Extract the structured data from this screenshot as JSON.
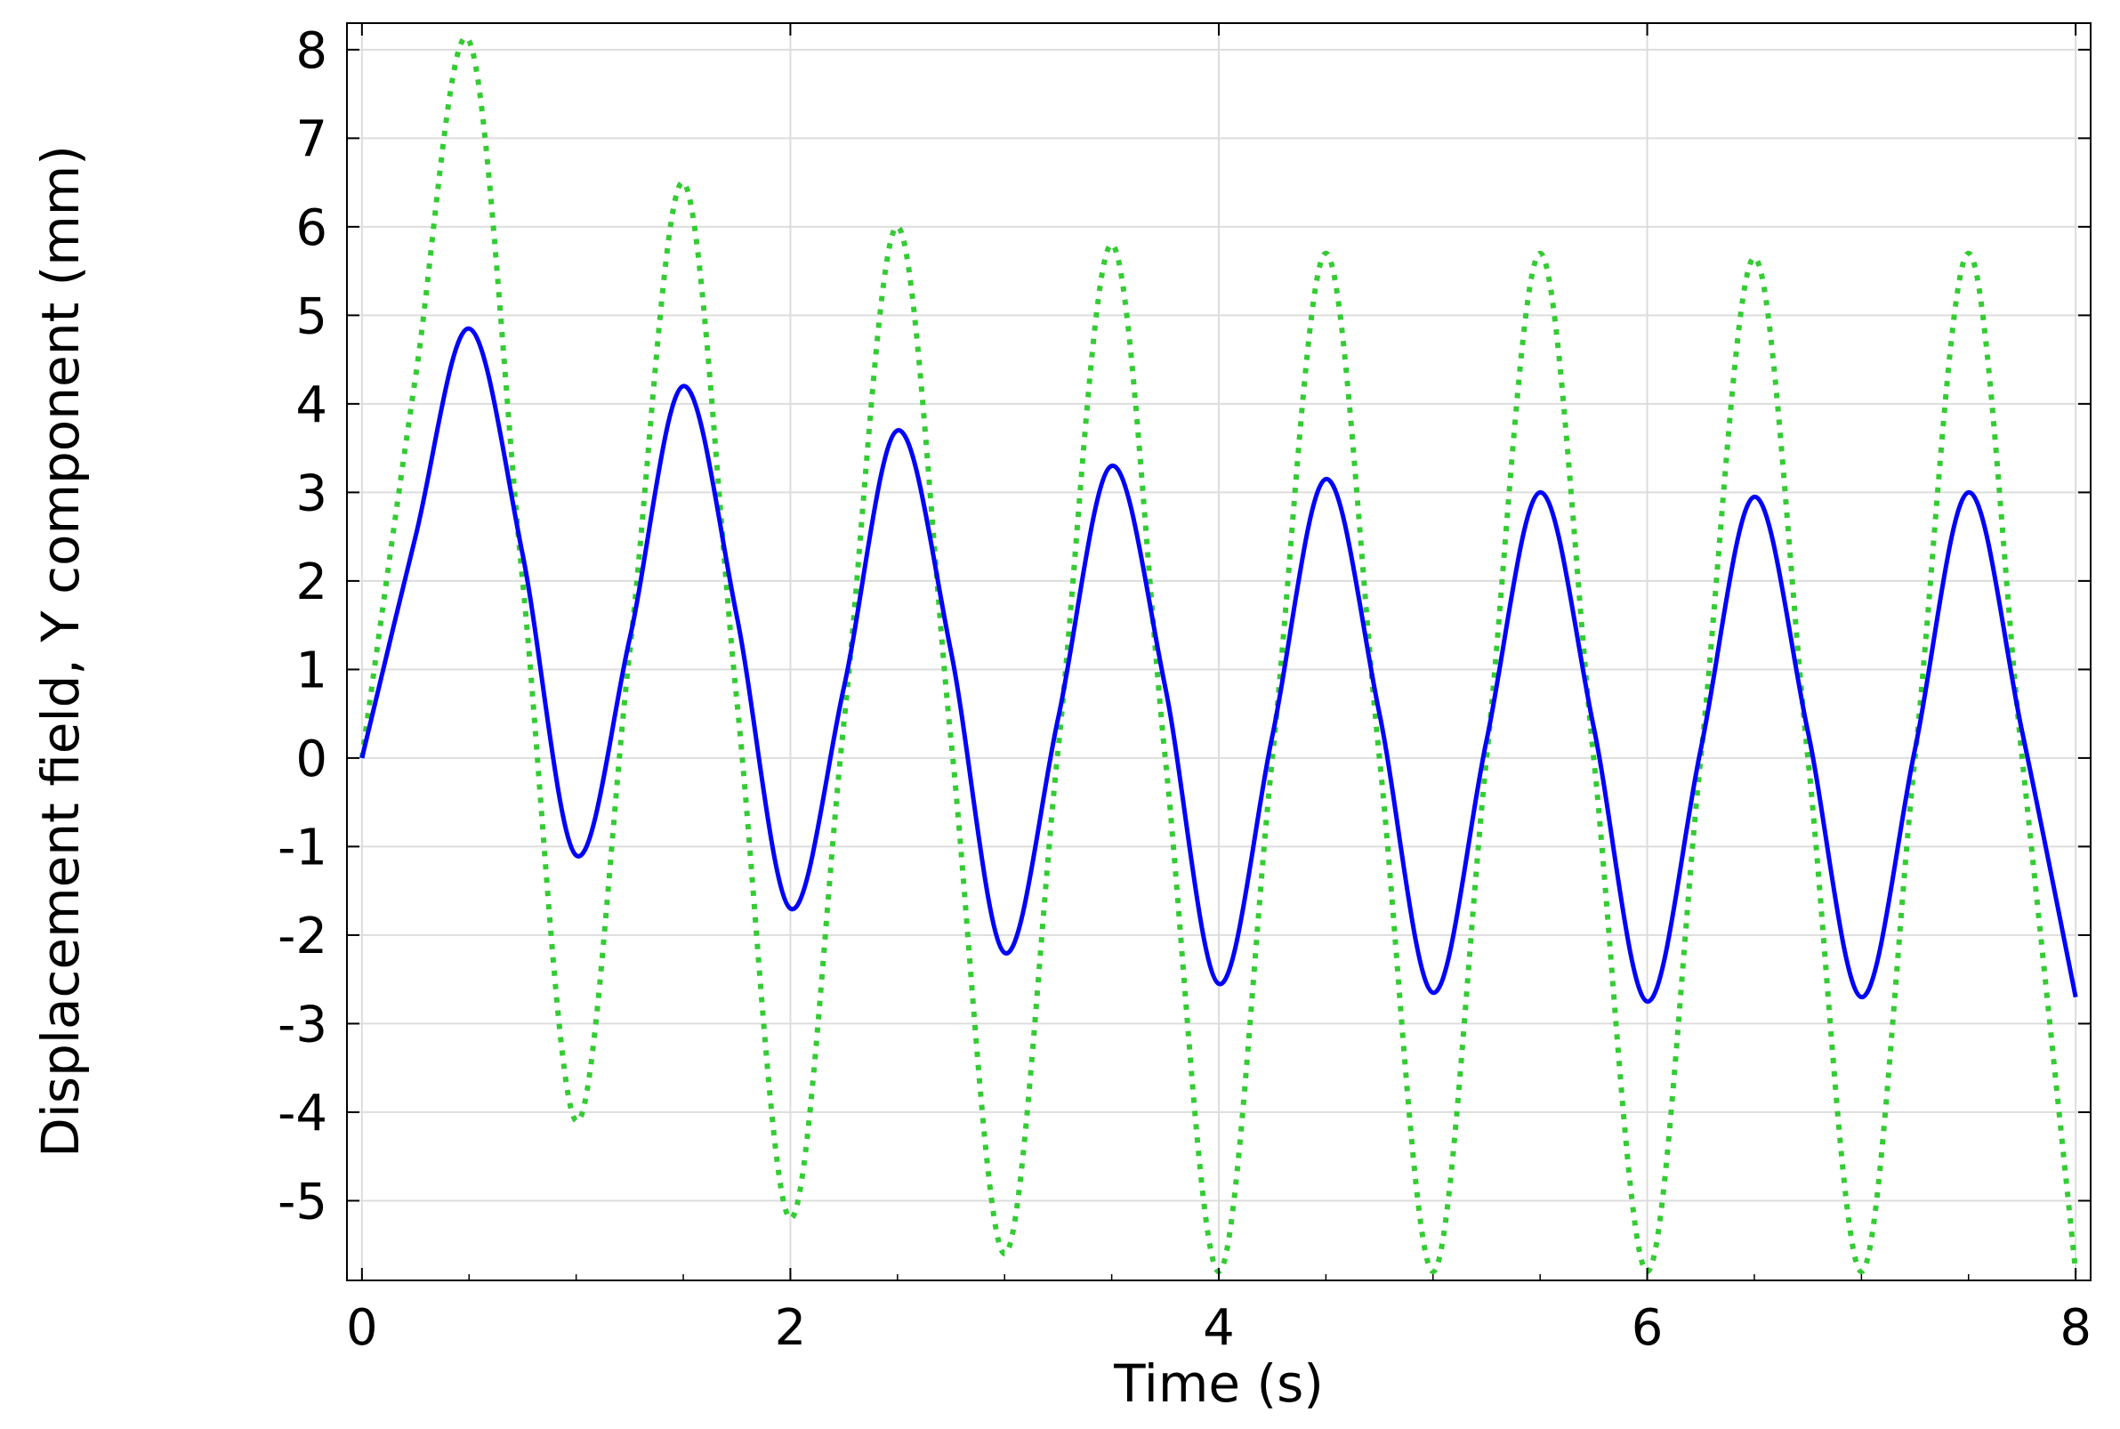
{
  "chart_data": {
    "type": "line",
    "title": "",
    "xlabel": "Time (s)",
    "ylabel": "Displacement field, Y component (mm)",
    "xlim": [
      -0.07,
      8.07
    ],
    "ylim": [
      -5.9,
      8.3
    ],
    "grid": true,
    "legend": "none",
    "x_ticks": [
      0,
      2,
      4,
      6,
      8
    ],
    "y_ticks": [
      8,
      7,
      6,
      5,
      4,
      3,
      2,
      1,
      0,
      -1,
      -2,
      -3,
      -4,
      -5
    ],
    "x_tick_labels": [
      "0",
      "2",
      "4",
      "6",
      "8"
    ],
    "y_tick_labels": [
      "8",
      "7",
      "6",
      "5",
      "4",
      "3",
      "2",
      "1",
      "0",
      "-1",
      "-2",
      "-3",
      "-4",
      "-5"
    ],
    "series": [
      {
        "color": "#0000ff",
        "style": "solid",
        "x": [
          0,
          0.25,
          0.5,
          0.75,
          1.0,
          1.25,
          1.5,
          1.75,
          2.0,
          2.25,
          2.5,
          2.75,
          3.0,
          3.25,
          3.5,
          3.75,
          4.0,
          4.25,
          4.5,
          4.75,
          5.0,
          5.25,
          5.5,
          5.75,
          6.0,
          6.25,
          6.5,
          6.75,
          7.0,
          7.25,
          7.5,
          7.75,
          8.0
        ],
        "y": [
          0,
          2.5,
          4.85,
          2.3,
          -1.1,
          1.35,
          4.2,
          1.6,
          -1.7,
          0.8,
          3.7,
          1.2,
          -2.2,
          0.45,
          3.3,
          0.8,
          -2.55,
          0.25,
          3.15,
          0.5,
          -2.65,
          0.2,
          3.0,
          0.35,
          -2.75,
          0.1,
          2.95,
          0.3,
          -2.7,
          0.1,
          3.0,
          0.3,
          -2.7
        ]
      },
      {
        "color": "#33cc33",
        "style": "dotted",
        "x": [
          0,
          0.25,
          0.5,
          0.75,
          1.0,
          1.25,
          1.5,
          1.75,
          2.0,
          2.25,
          2.5,
          2.75,
          3.0,
          3.25,
          3.5,
          3.75,
          4.0,
          4.25,
          4.5,
          4.75,
          5.0,
          5.25,
          5.5,
          5.75,
          6.0,
          6.25,
          6.5,
          6.75,
          7.0,
          7.25,
          7.5,
          7.75,
          8.0
        ],
        "y": [
          0,
          4.3,
          8.1,
          2.0,
          -4.1,
          1.2,
          6.5,
          0.65,
          -5.2,
          0.4,
          6.0,
          0.2,
          -5.6,
          0.1,
          5.8,
          0.0,
          -5.8,
          0.0,
          5.7,
          0.0,
          -5.8,
          0.0,
          5.7,
          0.0,
          -5.8,
          0.0,
          5.65,
          0.0,
          -5.8,
          0.0,
          5.7,
          0.0,
          -5.8
        ]
      }
    ]
  }
}
